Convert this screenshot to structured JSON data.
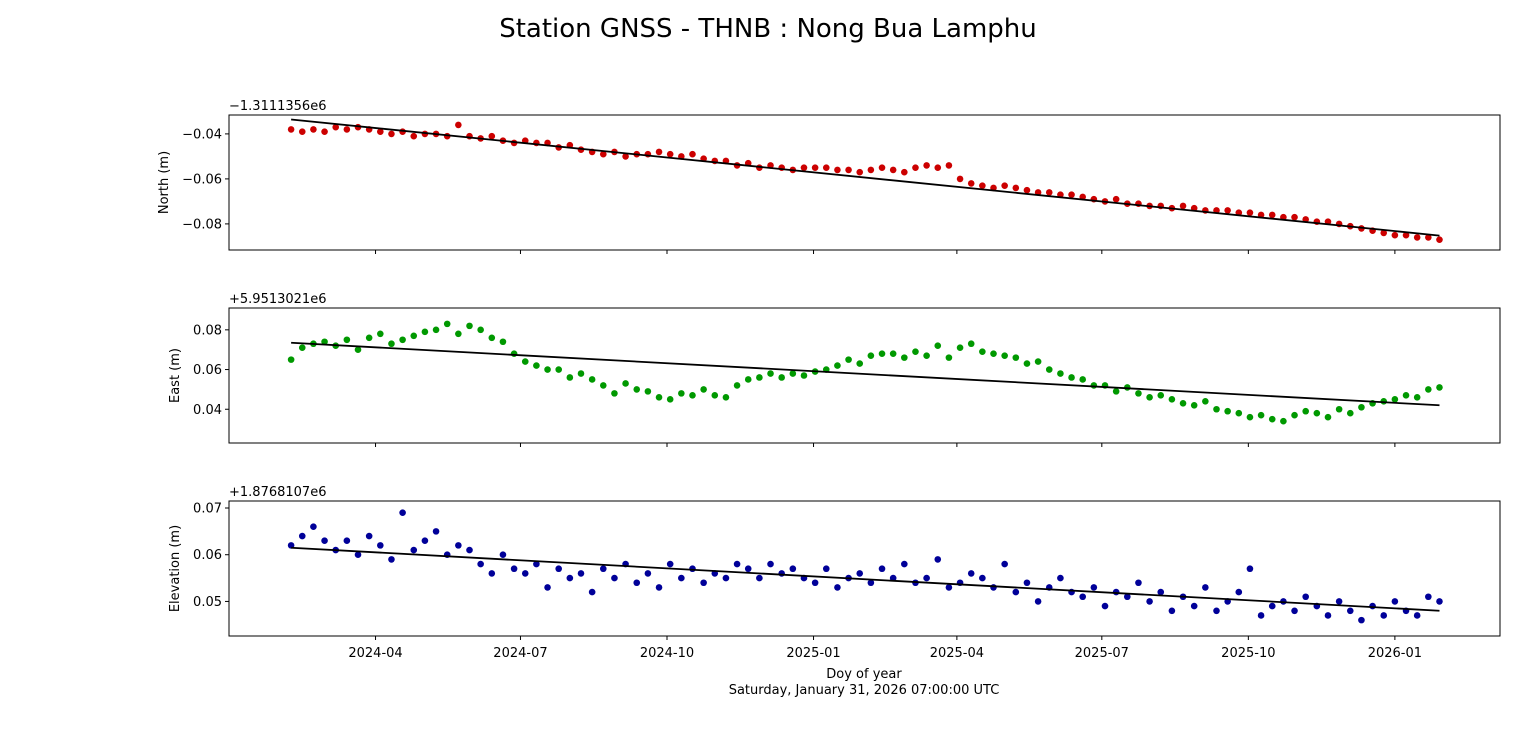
{
  "chart_data": {
    "type": "scatter",
    "title": "Station GNSS - THNB : Nong Bua Lamphu",
    "xlabel": "Doy of year",
    "subtitle": "Saturday, January 31, 2026 07:00:00 UTC",
    "x_start": "2024-02-08",
    "x_step_days": 7,
    "x_ticks": [
      "2024-04",
      "2024-07",
      "2024-10",
      "2025-01",
      "2025-04",
      "2025-07",
      "2025-10",
      "2026-01"
    ],
    "x_tick_dates": [
      "2024-04-01",
      "2024-07-01",
      "2024-10-01",
      "2025-01-01",
      "2025-04-01",
      "2025-07-01",
      "2025-10-01",
      "2026-01-01"
    ],
    "xlim": [
      "2023-12-31",
      "2026-03-08"
    ],
    "grid": false,
    "panels": [
      {
        "name": "North",
        "ylabel": "North (m)",
        "offset_label": "−1.3111356e6",
        "color": "#cc0000",
        "ylim": [
          -0.0916,
          -0.0316
        ],
        "y_ticks": [
          -0.04,
          -0.06,
          -0.08
        ],
        "y_tick_labels": [
          "−0.04",
          "−0.06",
          "−0.08"
        ],
        "trend": [
          -0.0336,
          -0.0852
        ],
        "values": [
          -0.038,
          -0.039,
          -0.038,
          -0.039,
          -0.037,
          -0.038,
          -0.037,
          -0.038,
          -0.039,
          -0.04,
          -0.039,
          -0.041,
          -0.04,
          -0.04,
          -0.041,
          -0.036,
          -0.041,
          -0.042,
          -0.041,
          -0.043,
          -0.044,
          -0.043,
          -0.044,
          -0.044,
          -0.046,
          -0.045,
          -0.047,
          -0.048,
          -0.049,
          -0.048,
          -0.05,
          -0.049,
          -0.049,
          -0.048,
          -0.049,
          -0.05,
          -0.049,
          -0.051,
          -0.052,
          -0.052,
          -0.054,
          -0.053,
          -0.055,
          -0.054,
          -0.055,
          -0.056,
          -0.055,
          -0.055,
          -0.055,
          -0.056,
          -0.056,
          -0.057,
          -0.056,
          -0.055,
          -0.056,
          -0.057,
          -0.055,
          -0.054,
          -0.055,
          -0.054,
          -0.06,
          -0.062,
          -0.063,
          -0.064,
          -0.063,
          -0.064,
          -0.065,
          -0.066,
          -0.066,
          -0.067,
          -0.067,
          -0.068,
          -0.069,
          -0.07,
          -0.069,
          -0.071,
          -0.071,
          -0.072,
          -0.072,
          -0.073,
          -0.072,
          -0.073,
          -0.074,
          -0.074,
          -0.074,
          -0.075,
          -0.075,
          -0.076,
          -0.076,
          -0.077,
          -0.077,
          -0.078,
          -0.079,
          -0.079,
          -0.08,
          -0.081,
          -0.082,
          -0.083,
          -0.084,
          -0.085,
          -0.085,
          -0.086,
          -0.086,
          -0.087
        ]
      },
      {
        "name": "East",
        "ylabel": "East (m)",
        "offset_label": "+5.9513021e6",
        "color": "#009900",
        "ylim": [
          0.023,
          0.091
        ],
        "y_ticks": [
          0.08,
          0.06,
          0.04
        ],
        "y_tick_labels": [
          "0.08",
          "0.06",
          "0.04"
        ],
        "trend": [
          0.0735,
          0.042
        ],
        "values": [
          0.065,
          0.071,
          0.073,
          0.074,
          0.072,
          0.075,
          0.07,
          0.076,
          0.078,
          0.073,
          0.075,
          0.077,
          0.079,
          0.08,
          0.083,
          0.078,
          0.082,
          0.08,
          0.076,
          0.074,
          0.068,
          0.064,
          0.062,
          0.06,
          0.06,
          0.056,
          0.058,
          0.055,
          0.052,
          0.048,
          0.053,
          0.05,
          0.049,
          0.046,
          0.045,
          0.048,
          0.047,
          0.05,
          0.047,
          0.046,
          0.052,
          0.055,
          0.056,
          0.058,
          0.056,
          0.058,
          0.057,
          0.059,
          0.06,
          0.062,
          0.065,
          0.063,
          0.067,
          0.068,
          0.068,
          0.066,
          0.069,
          0.067,
          0.072,
          0.066,
          0.071,
          0.073,
          0.069,
          0.068,
          0.067,
          0.066,
          0.063,
          0.064,
          0.06,
          0.058,
          0.056,
          0.055,
          0.052,
          0.052,
          0.049,
          0.051,
          0.048,
          0.046,
          0.047,
          0.045,
          0.043,
          0.042,
          0.044,
          0.04,
          0.039,
          0.038,
          0.036,
          0.037,
          0.035,
          0.034,
          0.037,
          0.039,
          0.038,
          0.036,
          0.04,
          0.038,
          0.041,
          0.043,
          0.044,
          0.045,
          0.047,
          0.046,
          0.05,
          0.051
        ]
      },
      {
        "name": "Elevation",
        "ylabel": "Elevation (m)",
        "offset_label": "+1.8768107e6",
        "color": "#000099",
        "ylim": [
          0.0426,
          0.0715
        ],
        "y_ticks": [
          0.07,
          0.06,
          0.05
        ],
        "y_tick_labels": [
          "0.07",
          "0.06",
          "0.05"
        ],
        "trend": [
          0.0615,
          0.048
        ],
        "values": [
          0.062,
          0.064,
          0.066,
          0.063,
          0.061,
          0.063,
          0.06,
          0.064,
          0.062,
          0.059,
          0.069,
          0.061,
          0.063,
          0.065,
          0.06,
          0.062,
          0.061,
          0.058,
          0.056,
          0.06,
          0.057,
          0.056,
          0.058,
          0.053,
          0.057,
          0.055,
          0.056,
          0.052,
          0.057,
          0.055,
          0.058,
          0.054,
          0.056,
          0.053,
          0.058,
          0.055,
          0.057,
          0.054,
          0.056,
          0.055,
          0.058,
          0.057,
          0.055,
          0.058,
          0.056,
          0.057,
          0.055,
          0.054,
          0.057,
          0.053,
          0.055,
          0.056,
          0.054,
          0.057,
          0.055,
          0.058,
          0.054,
          0.055,
          0.059,
          0.053,
          0.054,
          0.056,
          0.055,
          0.053,
          0.058,
          0.052,
          0.054,
          0.05,
          0.053,
          0.055,
          0.052,
          0.051,
          0.053,
          0.049,
          0.052,
          0.051,
          0.054,
          0.05,
          0.052,
          0.048,
          0.051,
          0.049,
          0.053,
          0.048,
          0.05,
          0.052,
          0.057,
          0.047,
          0.049,
          0.05,
          0.048,
          0.051,
          0.049,
          0.047,
          0.05,
          0.048,
          0.046,
          0.049,
          0.047,
          0.05,
          0.048,
          0.047,
          0.051,
          0.05
        ]
      }
    ]
  }
}
